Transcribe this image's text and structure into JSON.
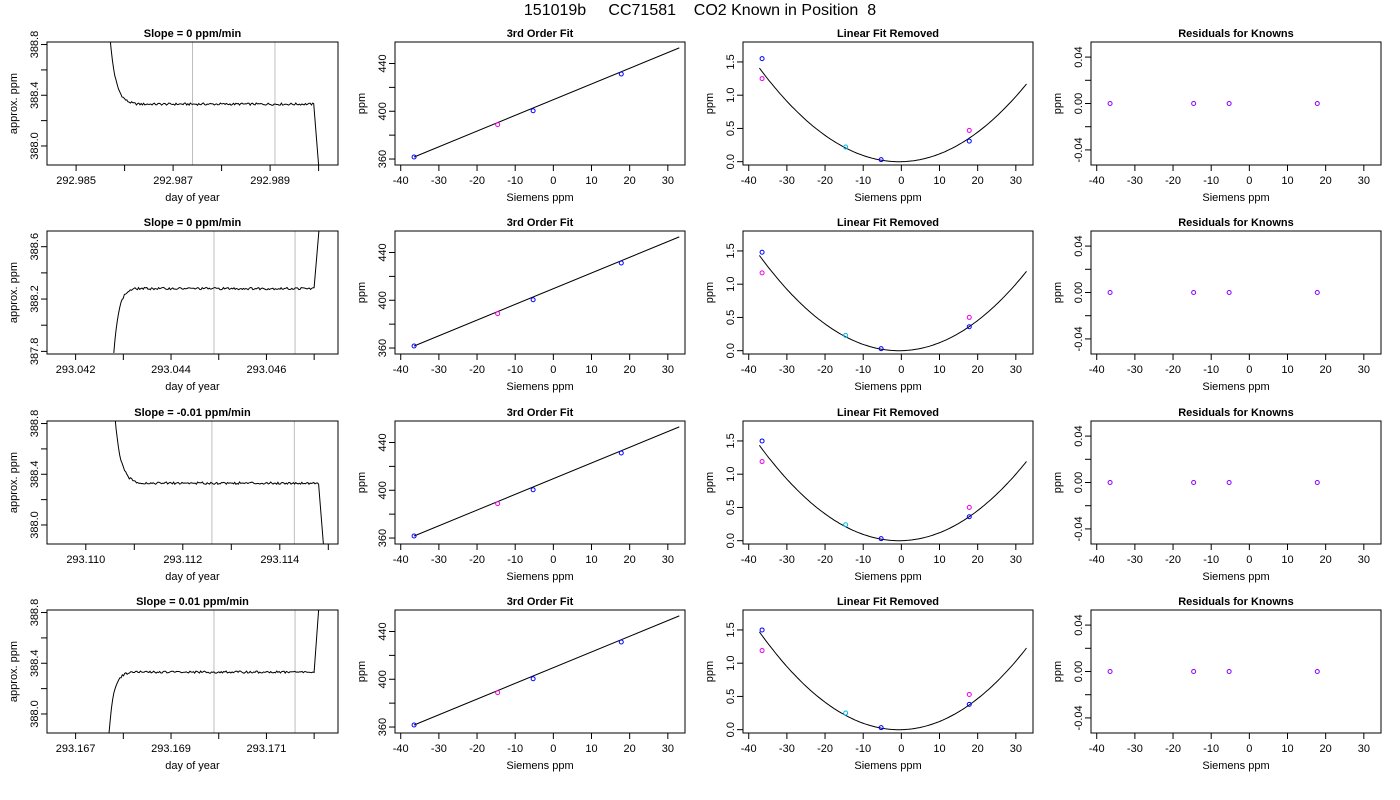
{
  "page_title": "151019b     CC71581    CO2 Known in Position  8",
  "colors": {
    "trace": "#000000",
    "vline": "#bebebe",
    "point_blue": "#0000ff",
    "point_magenta": "#ee00ee",
    "point_cyan": "#00bbee",
    "point_purple": "#8800ff",
    "fit_line": "#000000"
  },
  "chart_data": [
    {
      "row": 1,
      "type": "line",
      "title": "Slope =  0  ppm/min",
      "xlabel": "day of year",
      "ylabel": "approx. ppm",
      "xlim": [
        292.9844,
        292.9904
      ],
      "ylim": [
        387.85,
        388.82
      ],
      "xticks": [
        292.985,
        292.986,
        292.987,
        292.988,
        292.989,
        292.99
      ],
      "xtick_labels": [
        "292.985",
        "",
        "292.987",
        "",
        "292.989",
        ""
      ],
      "yticks": [
        388.0,
        388.2,
        388.4,
        388.6,
        388.8
      ],
      "ytick_labels": [
        "388.0",
        "",
        "388.4",
        "",
        "388.8"
      ],
      "vlines": [
        292.9874,
        292.9891
      ],
      "trace": {
        "start": 292.9857,
        "flat_start": 292.9863,
        "end": 292.9899,
        "stop": 292.99,
        "start_level": 388.85,
        "level": 388.33,
        "end_level": 387.85
      }
    },
    {
      "row": 1,
      "type": "scatter",
      "title": "3rd Order Fit",
      "xlabel": "Siemens ppm",
      "ylabel": "ppm",
      "xlim": [
        -41.5,
        34.5
      ],
      "ylim": [
        355,
        458
      ],
      "xticks": [
        -40,
        -30,
        -20,
        -10,
        0,
        10,
        20,
        30
      ],
      "yticks": [
        360,
        380,
        400,
        420,
        440
      ],
      "ytick_labels": [
        "360",
        "",
        "400",
        "",
        "440"
      ],
      "fit": [
        [
          -36.5,
          361.7
        ],
        [
          33,
          453.1
        ]
      ],
      "points": [
        {
          "x": -36.5,
          "y": 361.7,
          "c": "blue"
        },
        {
          "x": -14.6,
          "y": 388.8,
          "c": "magenta"
        },
        {
          "x": -5.3,
          "y": 400.4,
          "c": "blue"
        },
        {
          "x": 17.8,
          "y": 431.2,
          "c": "blue"
        }
      ]
    },
    {
      "row": 1,
      "type": "scatter",
      "title": "Linear Fit Removed",
      "xlabel": "Siemens ppm",
      "ylabel": "ppm",
      "xlim": [
        -41.5,
        34.5
      ],
      "ylim": [
        -0.05,
        1.8
      ],
      "xticks": [
        -40,
        -30,
        -20,
        -10,
        0,
        10,
        20,
        30
      ],
      "yticks": [
        0.0,
        0.5,
        1.0,
        1.5
      ],
      "ytick_labels": [
        "0.0",
        "0.5",
        "1.0",
        "1.5"
      ],
      "curve_a": 0.00105,
      "curve_b": 0.0012,
      "points": [
        {
          "x": -36.5,
          "y": 1.55,
          "c": "blue"
        },
        {
          "x": -36.5,
          "y": 1.25,
          "c": "magenta"
        },
        {
          "x": -14.6,
          "y": 0.22,
          "c": "cyan"
        },
        {
          "x": -5.3,
          "y": 0.03,
          "c": "blue"
        },
        {
          "x": 17.8,
          "y": 0.31,
          "c": "blue"
        },
        {
          "x": 17.8,
          "y": 0.47,
          "c": "magenta"
        }
      ]
    },
    {
      "row": 1,
      "type": "scatter",
      "title": "Residuals for Knowns",
      "xlabel": "Siemens ppm",
      "ylabel": "ppm",
      "xlim": [
        -41.5,
        34.5
      ],
      "ylim": [
        -0.053,
        0.053
      ],
      "xticks": [
        -40,
        -30,
        -20,
        -10,
        0,
        10,
        20,
        30
      ],
      "yticks": [
        -0.04,
        -0.02,
        0.0,
        0.02,
        0.04
      ],
      "ytick_labels": [
        "-0.04",
        "",
        "0.00",
        "",
        "0.04"
      ],
      "points": [
        {
          "x": -36.5,
          "y": 0,
          "c": "purple"
        },
        {
          "x": -14.6,
          "y": 0,
          "c": "purple"
        },
        {
          "x": -5.3,
          "y": 0,
          "c": "purple"
        },
        {
          "x": 17.8,
          "y": 0,
          "c": "purple"
        }
      ]
    },
    {
      "row": 2,
      "type": "line",
      "title": "Slope =  0  ppm/min",
      "xlabel": "day of year",
      "ylabel": "approx. ppm",
      "xlim": [
        293.0414,
        293.0475
      ],
      "ylim": [
        387.78,
        388.72
      ],
      "xticks": [
        293.042,
        293.043,
        293.044,
        293.045,
        293.046,
        293.047
      ],
      "xtick_labels": [
        "293.042",
        "",
        "293.044",
        "",
        "293.046",
        ""
      ],
      "yticks": [
        387.8,
        388.0,
        388.2,
        388.4,
        388.6
      ],
      "ytick_labels": [
        "387.8",
        "",
        "388.2",
        "",
        "388.6"
      ],
      "vlines": [
        293.0449,
        293.0466
      ],
      "trace": {
        "start": 293.0428,
        "flat_start": 293.0433,
        "end": 293.047,
        "stop": 293.0471,
        "start_level": 387.78,
        "level": 388.28,
        "end_level": 388.72
      }
    },
    {
      "row": 2,
      "type": "scatter",
      "title": "3rd Order Fit",
      "xlabel": "Siemens ppm",
      "ylabel": "ppm",
      "xlim": [
        -41.5,
        34.5
      ],
      "ylim": [
        355,
        458
      ],
      "xticks": [
        -40,
        -30,
        -20,
        -10,
        0,
        10,
        20,
        30
      ],
      "yticks": [
        360,
        380,
        400,
        420,
        440
      ],
      "ytick_labels": [
        "360",
        "",
        "400",
        "",
        "440"
      ],
      "fit": [
        [
          -36.5,
          361.7
        ],
        [
          33,
          453.1
        ]
      ],
      "points": [
        {
          "x": -36.5,
          "y": 361.7,
          "c": "blue"
        },
        {
          "x": -14.6,
          "y": 388.8,
          "c": "magenta"
        },
        {
          "x": -5.3,
          "y": 400.4,
          "c": "blue"
        },
        {
          "x": 17.8,
          "y": 431.2,
          "c": "blue"
        }
      ]
    },
    {
      "row": 2,
      "type": "scatter",
      "title": "Linear Fit Removed",
      "xlabel": "Siemens ppm",
      "ylabel": "ppm",
      "xlim": [
        -41.5,
        34.5
      ],
      "ylim": [
        -0.05,
        1.8
      ],
      "xticks": [
        -40,
        -30,
        -20,
        -10,
        0,
        10,
        20,
        30
      ],
      "yticks": [
        0.0,
        0.5,
        1.0,
        1.5
      ],
      "ytick_labels": [
        "0.0",
        "0.5",
        "1.0",
        "1.5"
      ],
      "curve_a": 0.00107,
      "curve_b": 0.0013,
      "points": [
        {
          "x": -36.5,
          "y": 1.48,
          "c": "blue"
        },
        {
          "x": -36.5,
          "y": 1.17,
          "c": "magenta"
        },
        {
          "x": -14.6,
          "y": 0.23,
          "c": "cyan"
        },
        {
          "x": -5.3,
          "y": 0.03,
          "c": "blue"
        },
        {
          "x": 17.8,
          "y": 0.36,
          "c": "blue"
        },
        {
          "x": 17.8,
          "y": 0.5,
          "c": "magenta"
        }
      ]
    },
    {
      "row": 2,
      "type": "scatter",
      "title": "Residuals for Knowns",
      "xlabel": "Siemens ppm",
      "ylabel": "ppm",
      "xlim": [
        -41.5,
        34.5
      ],
      "ylim": [
        -0.053,
        0.053
      ],
      "xticks": [
        -40,
        -30,
        -20,
        -10,
        0,
        10,
        20,
        30
      ],
      "yticks": [
        -0.04,
        -0.02,
        0.0,
        0.02,
        0.04
      ],
      "ytick_labels": [
        "-0.04",
        "",
        "0.00",
        "",
        "0.04"
      ],
      "points": [
        {
          "x": -36.5,
          "y": 0,
          "c": "purple"
        },
        {
          "x": -14.6,
          "y": 0,
          "c": "purple"
        },
        {
          "x": -5.3,
          "y": 0,
          "c": "purple"
        },
        {
          "x": 17.8,
          "y": 0,
          "c": "purple"
        }
      ]
    },
    {
      "row": 3,
      "type": "line",
      "title": "Slope =  -0.01  ppm/min",
      "xlabel": "day of year",
      "ylabel": "approx. ppm",
      "xlim": [
        293.1092,
        293.1152
      ],
      "ylim": [
        387.85,
        388.82
      ],
      "xticks": [
        293.11,
        293.111,
        293.112,
        293.113,
        293.114,
        293.115
      ],
      "xtick_labels": [
        "293.110",
        "",
        "293.112",
        "",
        "293.114",
        ""
      ],
      "yticks": [
        388.0,
        388.2,
        388.4,
        388.6,
        388.8
      ],
      "ytick_labels": [
        "388.0",
        "",
        "388.4",
        "",
        "388.8"
      ],
      "vlines": [
        293.1126,
        293.1143
      ],
      "trace": {
        "start": 293.1106,
        "flat_start": 293.1112,
        "end": 293.1148,
        "stop": 293.1149,
        "start_level": 388.85,
        "level": 388.33,
        "end_level": 387.85
      }
    },
    {
      "row": 3,
      "type": "scatter",
      "title": "3rd Order Fit",
      "xlabel": "Siemens ppm",
      "ylabel": "ppm",
      "xlim": [
        -41.5,
        34.5
      ],
      "ylim": [
        355,
        458
      ],
      "xticks": [
        -40,
        -30,
        -20,
        -10,
        0,
        10,
        20,
        30
      ],
      "yticks": [
        360,
        380,
        400,
        420,
        440
      ],
      "ytick_labels": [
        "360",
        "",
        "400",
        "",
        "440"
      ],
      "fit": [
        [
          -36.5,
          361.7
        ],
        [
          33,
          453.1
        ]
      ],
      "points": [
        {
          "x": -36.5,
          "y": 361.7,
          "c": "blue"
        },
        {
          "x": -14.6,
          "y": 388.8,
          "c": "magenta"
        },
        {
          "x": -5.3,
          "y": 400.4,
          "c": "blue"
        },
        {
          "x": 17.8,
          "y": 431.2,
          "c": "blue"
        }
      ]
    },
    {
      "row": 3,
      "type": "scatter",
      "title": "Linear Fit Removed",
      "xlabel": "Siemens ppm",
      "ylabel": "ppm",
      "xlim": [
        -41.5,
        34.5
      ],
      "ylim": [
        -0.05,
        1.8
      ],
      "xticks": [
        -40,
        -30,
        -20,
        -10,
        0,
        10,
        20,
        30
      ],
      "yticks": [
        0.0,
        0.5,
        1.0,
        1.5
      ],
      "ytick_labels": [
        "0.0",
        "0.5",
        "1.0",
        "1.5"
      ],
      "curve_a": 0.00107,
      "curve_b": 0.00125,
      "points": [
        {
          "x": -36.5,
          "y": 1.5,
          "c": "blue"
        },
        {
          "x": -36.5,
          "y": 1.19,
          "c": "magenta"
        },
        {
          "x": -14.6,
          "y": 0.24,
          "c": "cyan"
        },
        {
          "x": -5.3,
          "y": 0.03,
          "c": "blue"
        },
        {
          "x": 17.8,
          "y": 0.36,
          "c": "blue"
        },
        {
          "x": 17.8,
          "y": 0.5,
          "c": "magenta"
        }
      ]
    },
    {
      "row": 3,
      "type": "scatter",
      "title": "Residuals for Knowns",
      "xlabel": "Siemens ppm",
      "ylabel": "ppm",
      "xlim": [
        -41.5,
        34.5
      ],
      "ylim": [
        -0.053,
        0.053
      ],
      "xticks": [
        -40,
        -30,
        -20,
        -10,
        0,
        10,
        20,
        30
      ],
      "yticks": [
        -0.04,
        -0.02,
        0.0,
        0.02,
        0.04
      ],
      "ytick_labels": [
        "-0.04",
        "",
        "0.00",
        "",
        "0.04"
      ],
      "points": [
        {
          "x": -36.5,
          "y": 0,
          "c": "purple"
        },
        {
          "x": -14.6,
          "y": 0,
          "c": "purple"
        },
        {
          "x": -5.3,
          "y": 0,
          "c": "purple"
        },
        {
          "x": 17.8,
          "y": 0,
          "c": "purple"
        }
      ]
    },
    {
      "row": 4,
      "type": "line",
      "title": "Slope =  0.01  ppm/min",
      "xlabel": "day of year",
      "ylabel": "approx. ppm",
      "xlim": [
        293.1664,
        293.1725
      ],
      "ylim": [
        387.85,
        388.82
      ],
      "xticks": [
        293.167,
        293.168,
        293.169,
        293.17,
        293.171,
        293.172
      ],
      "xtick_labels": [
        "293.167",
        "",
        "293.169",
        "",
        "293.171",
        ""
      ],
      "yticks": [
        388.0,
        388.2,
        388.4,
        388.6,
        388.8
      ],
      "ytick_labels": [
        "388.0",
        "",
        "388.4",
        "",
        "388.8"
      ],
      "vlines": [
        293.1699,
        293.1716
      ],
      "trace": {
        "start": 293.1677,
        "flat_start": 293.1682,
        "end": 293.172,
        "stop": 293.1721,
        "start_level": 387.85,
        "level": 388.33,
        "end_level": 388.85
      }
    },
    {
      "row": 4,
      "type": "scatter",
      "title": "3rd Order Fit",
      "xlabel": "Siemens ppm",
      "ylabel": "ppm",
      "xlim": [
        -41.5,
        34.5
      ],
      "ylim": [
        355,
        458
      ],
      "xticks": [
        -40,
        -30,
        -20,
        -10,
        0,
        10,
        20,
        30
      ],
      "yticks": [
        360,
        380,
        400,
        420,
        440
      ],
      "ytick_labels": [
        "360",
        "",
        "400",
        "",
        "440"
      ],
      "fit": [
        [
          -36.5,
          361.7
        ],
        [
          33,
          453.1
        ]
      ],
      "points": [
        {
          "x": -36.5,
          "y": 361.7,
          "c": "blue"
        },
        {
          "x": -14.6,
          "y": 388.8,
          "c": "magenta"
        },
        {
          "x": -5.3,
          "y": 400.4,
          "c": "blue"
        },
        {
          "x": 17.8,
          "y": 431.2,
          "c": "blue"
        }
      ]
    },
    {
      "row": 4,
      "type": "scatter",
      "title": "Linear Fit Removed",
      "xlabel": "Siemens ppm",
      "ylabel": "ppm",
      "xlim": [
        -41.5,
        34.5
      ],
      "ylim": [
        -0.05,
        1.8
      ],
      "xticks": [
        -40,
        -30,
        -20,
        -10,
        0,
        10,
        20,
        30
      ],
      "yticks": [
        0.0,
        0.5,
        1.0,
        1.5
      ],
      "ytick_labels": [
        "0.0",
        "0.5",
        "1.0",
        "1.5"
      ],
      "curve_a": 0.0011,
      "curve_b": 0.00135,
      "points": [
        {
          "x": -36.5,
          "y": 1.5,
          "c": "blue"
        },
        {
          "x": -36.5,
          "y": 1.19,
          "c": "magenta"
        },
        {
          "x": -14.6,
          "y": 0.25,
          "c": "cyan"
        },
        {
          "x": -5.3,
          "y": 0.03,
          "c": "blue"
        },
        {
          "x": 17.8,
          "y": 0.38,
          "c": "blue"
        },
        {
          "x": 17.8,
          "y": 0.53,
          "c": "magenta"
        }
      ]
    },
    {
      "row": 4,
      "type": "scatter",
      "title": "Residuals for Knowns",
      "xlabel": "Siemens ppm",
      "ylabel": "ppm",
      "xlim": [
        -41.5,
        34.5
      ],
      "ylim": [
        -0.053,
        0.053
      ],
      "xticks": [
        -40,
        -30,
        -20,
        -10,
        0,
        10,
        20,
        30
      ],
      "yticks": [
        -0.04,
        -0.02,
        0.0,
        0.02,
        0.04
      ],
      "ytick_labels": [
        "-0.04",
        "",
        "0.00",
        "",
        "0.04"
      ],
      "points": [
        {
          "x": -36.5,
          "y": 0,
          "c": "purple"
        },
        {
          "x": -14.6,
          "y": 0,
          "c": "purple"
        },
        {
          "x": -5.3,
          "y": 0,
          "c": "purple"
        },
        {
          "x": 17.8,
          "y": 0,
          "c": "purple"
        }
      ]
    }
  ]
}
